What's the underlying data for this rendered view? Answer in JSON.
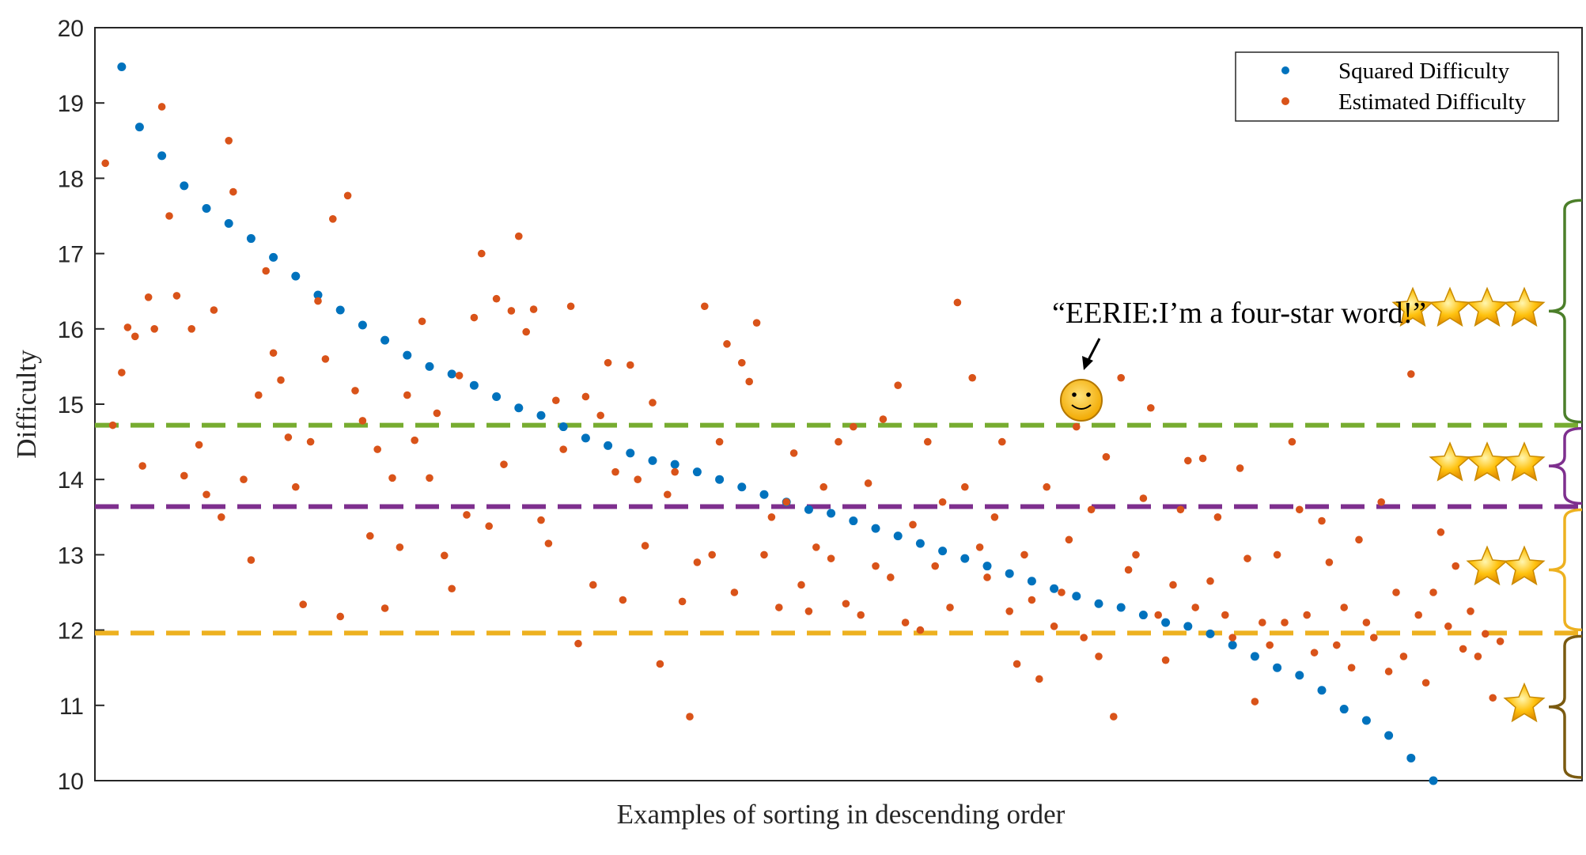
{
  "chart_data": {
    "type": "scatter",
    "title": "",
    "xlabel": "Examples of sorting in descending order",
    "ylabel": "Difficulty",
    "ylim": [
      10,
      20
    ],
    "yticks": [
      10,
      11,
      12,
      13,
      14,
      15,
      16,
      17,
      18,
      19,
      20
    ],
    "xlim": [
      0,
      1
    ],
    "grid": false,
    "legend": {
      "placement": "top-right",
      "entries": [
        "Squared Difficulty",
        "Estimated Difficulty"
      ]
    },
    "series": [
      {
        "name": "Squared Difficulty",
        "color": "#0072BD",
        "points": [
          [
            0.018,
            19.48
          ],
          [
            0.03,
            18.68
          ],
          [
            0.045,
            18.3
          ],
          [
            0.06,
            17.9
          ],
          [
            0.075,
            17.6
          ],
          [
            0.09,
            17.4
          ],
          [
            0.105,
            17.2
          ],
          [
            0.12,
            16.95
          ],
          [
            0.135,
            16.7
          ],
          [
            0.15,
            16.45
          ],
          [
            0.165,
            16.25
          ],
          [
            0.18,
            16.05
          ],
          [
            0.195,
            15.85
          ],
          [
            0.21,
            15.65
          ],
          [
            0.225,
            15.5
          ],
          [
            0.24,
            15.4
          ],
          [
            0.255,
            15.25
          ],
          [
            0.27,
            15.1
          ],
          [
            0.285,
            14.95
          ],
          [
            0.3,
            14.85
          ],
          [
            0.315,
            14.7
          ],
          [
            0.33,
            14.55
          ],
          [
            0.345,
            14.45
          ],
          [
            0.36,
            14.35
          ],
          [
            0.375,
            14.25
          ],
          [
            0.39,
            14.2
          ],
          [
            0.405,
            14.1
          ],
          [
            0.42,
            14.0
          ],
          [
            0.435,
            13.9
          ],
          [
            0.45,
            13.8
          ],
          [
            0.465,
            13.7
          ],
          [
            0.48,
            13.6
          ],
          [
            0.495,
            13.55
          ],
          [
            0.51,
            13.45
          ],
          [
            0.525,
            13.35
          ],
          [
            0.54,
            13.25
          ],
          [
            0.555,
            13.15
          ],
          [
            0.57,
            13.05
          ],
          [
            0.585,
            12.95
          ],
          [
            0.6,
            12.85
          ],
          [
            0.615,
            12.75
          ],
          [
            0.63,
            12.65
          ],
          [
            0.645,
            12.55
          ],
          [
            0.66,
            12.45
          ],
          [
            0.675,
            12.35
          ],
          [
            0.69,
            12.3
          ],
          [
            0.705,
            12.2
          ],
          [
            0.72,
            12.1
          ],
          [
            0.735,
            12.05
          ],
          [
            0.75,
            11.95
          ],
          [
            0.765,
            11.8
          ],
          [
            0.78,
            11.65
          ],
          [
            0.795,
            11.5
          ],
          [
            0.81,
            11.4
          ],
          [
            0.825,
            11.2
          ],
          [
            0.84,
            10.95
          ],
          [
            0.855,
            10.8
          ],
          [
            0.87,
            10.6
          ],
          [
            0.885,
            10.3
          ],
          [
            0.9,
            10.0
          ]
        ]
      },
      {
        "name": "Estimated Difficulty",
        "color": "#D95319",
        "points": [
          [
            0.007,
            18.2
          ],
          [
            0.012,
            14.72
          ],
          [
            0.018,
            15.42
          ],
          [
            0.022,
            16.02
          ],
          [
            0.027,
            15.9
          ],
          [
            0.032,
            14.18
          ],
          [
            0.036,
            16.42
          ],
          [
            0.04,
            16.0
          ],
          [
            0.045,
            18.95
          ],
          [
            0.05,
            17.5
          ],
          [
            0.055,
            16.44
          ],
          [
            0.06,
            14.05
          ],
          [
            0.065,
            16.0
          ],
          [
            0.07,
            14.46
          ],
          [
            0.075,
            13.8
          ],
          [
            0.08,
            16.25
          ],
          [
            0.085,
            13.5
          ],
          [
            0.09,
            18.5
          ],
          [
            0.093,
            17.82
          ],
          [
            0.1,
            14.0
          ],
          [
            0.105,
            12.93
          ],
          [
            0.11,
            15.12
          ],
          [
            0.115,
            16.77
          ],
          [
            0.12,
            15.68
          ],
          [
            0.125,
            15.32
          ],
          [
            0.13,
            14.56
          ],
          [
            0.135,
            13.9
          ],
          [
            0.14,
            12.34
          ],
          [
            0.145,
            14.5
          ],
          [
            0.15,
            16.37
          ],
          [
            0.155,
            15.6
          ],
          [
            0.16,
            17.46
          ],
          [
            0.165,
            12.18
          ],
          [
            0.17,
            17.77
          ],
          [
            0.175,
            15.18
          ],
          [
            0.18,
            14.78
          ],
          [
            0.185,
            13.25
          ],
          [
            0.19,
            14.4
          ],
          [
            0.195,
            12.29
          ],
          [
            0.2,
            14.02
          ],
          [
            0.205,
            13.1
          ],
          [
            0.21,
            15.12
          ],
          [
            0.215,
            14.52
          ],
          [
            0.22,
            16.1
          ],
          [
            0.225,
            14.02
          ],
          [
            0.23,
            14.88
          ],
          [
            0.235,
            12.99
          ],
          [
            0.24,
            12.55
          ],
          [
            0.245,
            15.38
          ],
          [
            0.25,
            13.53
          ],
          [
            0.255,
            16.15
          ],
          [
            0.26,
            17.0
          ],
          [
            0.265,
            13.38
          ],
          [
            0.27,
            16.4
          ],
          [
            0.275,
            14.2
          ],
          [
            0.28,
            16.24
          ],
          [
            0.285,
            17.23
          ],
          [
            0.29,
            15.96
          ],
          [
            0.295,
            16.26
          ],
          [
            0.3,
            13.46
          ],
          [
            0.305,
            13.15
          ],
          [
            0.31,
            15.05
          ],
          [
            0.315,
            14.4
          ],
          [
            0.32,
            16.3
          ],
          [
            0.325,
            11.82
          ],
          [
            0.33,
            15.1
          ],
          [
            0.335,
            12.6
          ],
          [
            0.34,
            14.85
          ],
          [
            0.345,
            15.55
          ],
          [
            0.35,
            14.1
          ],
          [
            0.355,
            12.4
          ],
          [
            0.36,
            15.52
          ],
          [
            0.365,
            14.0
          ],
          [
            0.37,
            13.12
          ],
          [
            0.375,
            15.02
          ],
          [
            0.38,
            11.55
          ],
          [
            0.385,
            13.8
          ],
          [
            0.39,
            14.1
          ],
          [
            0.395,
            12.38
          ],
          [
            0.4,
            10.85
          ],
          [
            0.405,
            12.9
          ],
          [
            0.41,
            16.3
          ],
          [
            0.415,
            13.0
          ],
          [
            0.42,
            14.5
          ],
          [
            0.425,
            15.8
          ],
          [
            0.43,
            12.5
          ],
          [
            0.435,
            15.55
          ],
          [
            0.44,
            15.3
          ],
          [
            0.445,
            16.08
          ],
          [
            0.45,
            13.0
          ],
          [
            0.455,
            13.5
          ],
          [
            0.46,
            12.3
          ],
          [
            0.465,
            13.7
          ],
          [
            0.47,
            14.35
          ],
          [
            0.475,
            12.6
          ],
          [
            0.48,
            12.25
          ],
          [
            0.485,
            13.1
          ],
          [
            0.49,
            13.9
          ],
          [
            0.495,
            12.95
          ],
          [
            0.5,
            14.5
          ],
          [
            0.505,
            12.35
          ],
          [
            0.51,
            14.7
          ],
          [
            0.515,
            12.2
          ],
          [
            0.52,
            13.95
          ],
          [
            0.525,
            12.85
          ],
          [
            0.53,
            14.8
          ],
          [
            0.535,
            12.7
          ],
          [
            0.54,
            15.25
          ],
          [
            0.545,
            12.1
          ],
          [
            0.55,
            13.4
          ],
          [
            0.555,
            12.0
          ],
          [
            0.56,
            14.5
          ],
          [
            0.565,
            12.85
          ],
          [
            0.57,
            13.7
          ],
          [
            0.575,
            12.3
          ],
          [
            0.58,
            16.35
          ],
          [
            0.585,
            13.9
          ],
          [
            0.59,
            15.35
          ],
          [
            0.595,
            13.1
          ],
          [
            0.6,
            12.7
          ],
          [
            0.605,
            13.5
          ],
          [
            0.61,
            14.5
          ],
          [
            0.615,
            12.25
          ],
          [
            0.62,
            11.55
          ],
          [
            0.625,
            13.0
          ],
          [
            0.63,
            12.4
          ],
          [
            0.635,
            11.35
          ],
          [
            0.64,
            13.9
          ],
          [
            0.645,
            12.05
          ],
          [
            0.65,
            12.5
          ],
          [
            0.655,
            13.2
          ],
          [
            0.66,
            14.7
          ],
          [
            0.665,
            11.9
          ],
          [
            0.67,
            13.6
          ],
          [
            0.675,
            11.65
          ],
          [
            0.68,
            14.3
          ],
          [
            0.685,
            10.85
          ],
          [
            0.69,
            15.35
          ],
          [
            0.695,
            12.8
          ],
          [
            0.7,
            13.0
          ],
          [
            0.705,
            13.75
          ],
          [
            0.71,
            14.95
          ],
          [
            0.715,
            12.2
          ],
          [
            0.72,
            11.6
          ],
          [
            0.725,
            12.6
          ],
          [
            0.73,
            13.6
          ],
          [
            0.735,
            14.25
          ],
          [
            0.74,
            12.3
          ],
          [
            0.745,
            14.28
          ],
          [
            0.75,
            12.65
          ],
          [
            0.755,
            13.5
          ],
          [
            0.76,
            12.2
          ],
          [
            0.765,
            11.9
          ],
          [
            0.77,
            14.15
          ],
          [
            0.775,
            12.95
          ],
          [
            0.78,
            11.05
          ],
          [
            0.785,
            12.1
          ],
          [
            0.79,
            11.8
          ],
          [
            0.795,
            13.0
          ],
          [
            0.8,
            12.1
          ],
          [
            0.805,
            14.5
          ],
          [
            0.81,
            13.6
          ],
          [
            0.815,
            12.2
          ],
          [
            0.82,
            11.7
          ],
          [
            0.825,
            13.45
          ],
          [
            0.83,
            12.9
          ],
          [
            0.835,
            11.8
          ],
          [
            0.84,
            12.3
          ],
          [
            0.845,
            11.5
          ],
          [
            0.85,
            13.2
          ],
          [
            0.855,
            12.1
          ],
          [
            0.86,
            11.9
          ],
          [
            0.865,
            13.7
          ],
          [
            0.87,
            11.45
          ],
          [
            0.875,
            12.5
          ],
          [
            0.88,
            11.65
          ],
          [
            0.885,
            15.4
          ],
          [
            0.89,
            12.2
          ],
          [
            0.895,
            11.3
          ],
          [
            0.9,
            12.5
          ],
          [
            0.905,
            13.3
          ],
          [
            0.91,
            12.05
          ],
          [
            0.915,
            12.85
          ],
          [
            0.92,
            11.75
          ],
          [
            0.925,
            12.25
          ],
          [
            0.93,
            11.65
          ],
          [
            0.935,
            11.95
          ],
          [
            0.94,
            11.1
          ],
          [
            0.945,
            11.85
          ]
        ]
      }
    ],
    "thresholds": [
      {
        "value": 14.72,
        "color": "#77AC30"
      },
      {
        "value": 13.64,
        "color": "#7E2F8E"
      },
      {
        "value": 11.96,
        "color": "#EDB120"
      }
    ],
    "brackets": [
      {
        "from": 14.72,
        "to": 17.75,
        "stars": 4,
        "color": "#4C7F2A"
      },
      {
        "from": 13.64,
        "to": 14.72,
        "stars": 3,
        "color": "#7E2F8E"
      },
      {
        "from": 11.96,
        "to": 13.64,
        "stars": 2,
        "color": "#EDB120"
      },
      {
        "from": 10.0,
        "to": 11.96,
        "stars": 1,
        "color": "#7A5A10"
      }
    ],
    "annotation": {
      "text": "“EERIE:I’m a four-star word!”",
      "x": 0.66,
      "y": 14.99,
      "icon": "smiley-face-icon"
    }
  }
}
